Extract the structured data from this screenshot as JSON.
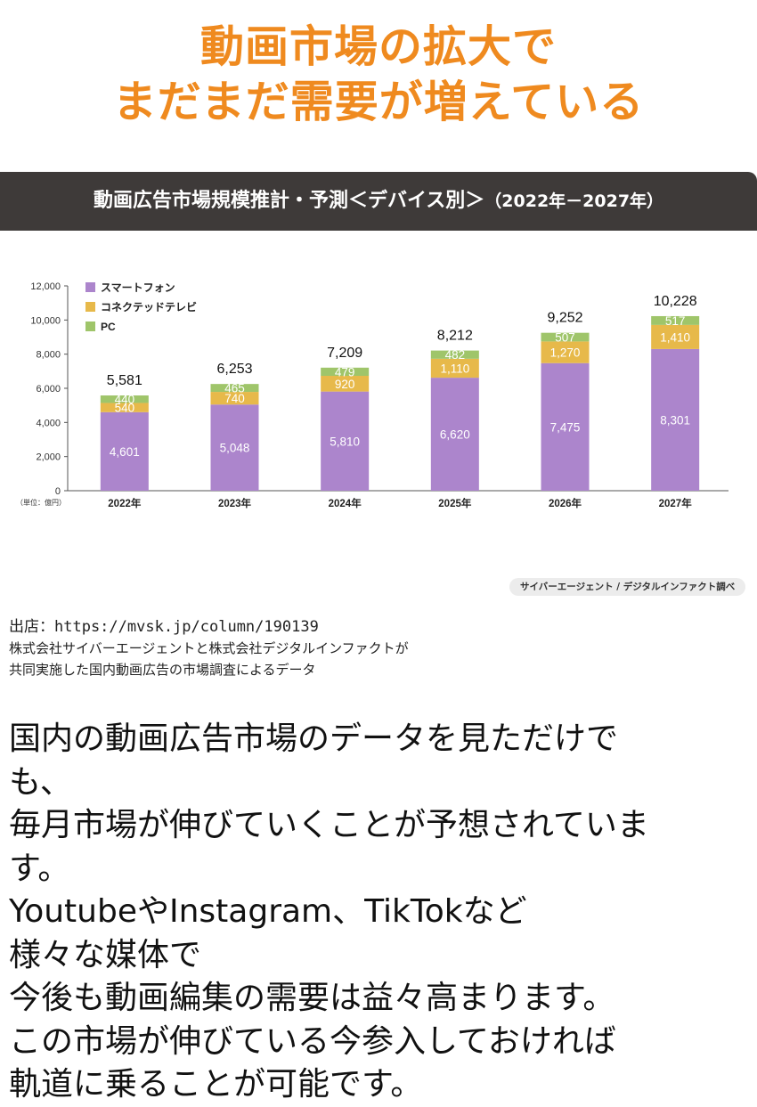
{
  "headline": {
    "line1": "動画市場の拡大で",
    "line2": "まだまだ需要が増えている"
  },
  "chart_data": {
    "type": "bar",
    "stacked": true,
    "title": "動画広告市場規模推計・予測＜デバイス別＞",
    "title_period": "（2022年－2027年）",
    "unit_label": "（単位：億円）",
    "categories": [
      "2022年",
      "2023年",
      "2024年",
      "2025年",
      "2026年",
      "2027年"
    ],
    "series": [
      {
        "name": "スマートフォン",
        "color": "#ac85cc",
        "values": [
          4601,
          5048,
          5810,
          6620,
          7475,
          8301
        ]
      },
      {
        "name": "コネクテッドテレビ",
        "color": "#e7b94a",
        "values": [
          540,
          740,
          920,
          1110,
          1270,
          1410
        ]
      },
      {
        "name": "PC",
        "color": "#9fc56a",
        "values": [
          440,
          465,
          479,
          482,
          507,
          517
        ]
      }
    ],
    "series_labels": [
      [
        "4,601",
        "5,048",
        "5,810",
        "6,620",
        "7,475",
        "8,301"
      ],
      [
        "540",
        "740",
        "920",
        "1,110",
        "1,270",
        "1,410"
      ],
      [
        "440",
        "465",
        "479",
        "482",
        "507",
        "517"
      ]
    ],
    "totals": [
      5581,
      6253,
      7209,
      8212,
      9252,
      10228
    ],
    "total_labels": [
      "5,581",
      "6,253",
      "7,209",
      "8,212",
      "9,252",
      "10,228"
    ],
    "yticks": [
      0,
      2000,
      4000,
      6000,
      8000,
      10000,
      12000
    ],
    "ytick_labels": [
      "0",
      "2,000",
      "4,000",
      "6,000",
      "8,000",
      "10,000",
      "12,000"
    ],
    "ylim": [
      0,
      12000
    ],
    "legend_position": "top-left",
    "grid": false,
    "source_badge": "サイバーエージェント / デジタルインファクト調べ"
  },
  "source": {
    "url_line": "出店：https://mvsk.jp/column/190139",
    "line2": "株式会社サイバーエージェントと株式会社デジタルインファクトが",
    "line3": "共同実施した国内動画広告の市場調査によるデータ"
  },
  "body": {
    "lines": [
      "国内の動画広告市場のデータを見ただけで",
      "も、",
      "毎月市場が伸びていくことが予想されていま",
      "す。",
      "YoutubeやInstagram、TikTokなど",
      "様々な媒体で",
      "今後も動画編集の需要は益々高まります。",
      "この市場が伸びている今参入しておければ",
      "軌道に乗ることが可能です。"
    ]
  }
}
